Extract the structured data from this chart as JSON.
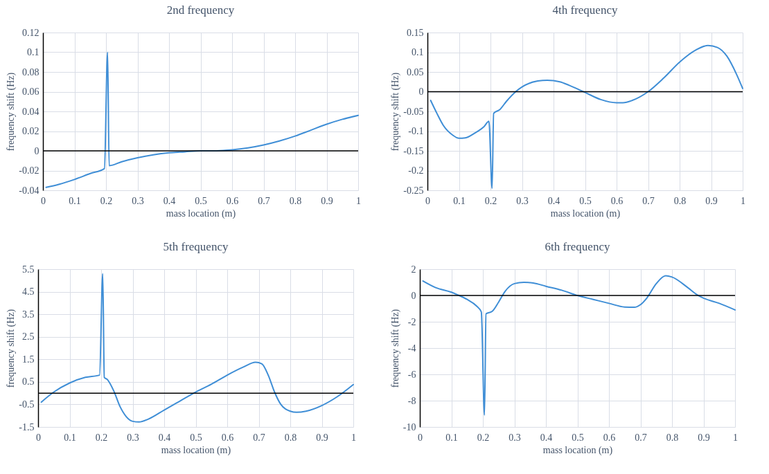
{
  "chart_data": [
    {
      "type": "line",
      "title": "2nd frequency",
      "xlabel": "mass location (m)",
      "ylabel": "frequency shift (Hz)",
      "xlim": [
        0,
        1
      ],
      "xticks": [
        0,
        0.1,
        0.2,
        0.3,
        0.4,
        0.5,
        0.6,
        0.7,
        0.8,
        0.9,
        1
      ],
      "ylim": [
        -0.04,
        0.12
      ],
      "yticks": [
        -0.04,
        -0.02,
        0,
        0.02,
        0.04,
        0.06,
        0.08,
        0.1,
        0.12
      ],
      "grid": true,
      "legend": false,
      "series": [
        {
          "color": "#3f8ed6",
          "x": [
            0.01,
            0.05,
            0.1,
            0.15,
            0.195,
            0.205,
            0.21,
            0.25,
            0.3,
            0.35,
            0.4,
            0.45,
            0.5,
            0.55,
            0.6,
            0.65,
            0.7,
            0.75,
            0.8,
            0.85,
            0.9,
            0.95,
            1
          ],
          "values": [
            -0.037,
            -0.034,
            -0.029,
            -0.023,
            -0.018,
            0.1,
            -0.015,
            -0.011,
            -0.007,
            -0.004,
            -0.002,
            -0.001,
            0,
            0,
            0.001,
            0.003,
            0.006,
            0.01,
            0.015,
            0.021,
            0.027,
            0.032,
            0.036
          ]
        }
      ],
      "ref_lines": [
        {
          "axis": "y",
          "value": 0,
          "color": "#000000"
        }
      ]
    },
    {
      "type": "line",
      "title": "4th frequency",
      "xlabel": "mass location (m)",
      "ylabel": "frequency shift (Hz)",
      "xlim": [
        0,
        1
      ],
      "xticks": [
        0,
        0.1,
        0.2,
        0.3,
        0.4,
        0.5,
        0.6,
        0.7,
        0.8,
        0.9,
        1
      ],
      "ylim": [
        -0.25,
        0.15
      ],
      "yticks": [
        -0.25,
        -0.2,
        -0.15,
        -0.1,
        -0.05,
        0,
        0.05,
        0.1,
        0.15
      ],
      "grid": true,
      "legend": false,
      "series": [
        {
          "color": "#3f8ed6",
          "x": [
            0.01,
            0.03,
            0.05,
            0.08,
            0.1,
            0.12,
            0.15,
            0.18,
            0.195,
            0.205,
            0.21,
            0.23,
            0.25,
            0.28,
            0.3,
            0.35,
            0.38,
            0.42,
            0.45,
            0.5,
            0.55,
            0.6,
            0.62,
            0.65,
            0.7,
            0.75,
            0.8,
            0.85,
            0.89,
            0.92,
            0.95,
            0.98,
            1
          ],
          "values": [
            -0.022,
            -0.055,
            -0.085,
            -0.11,
            -0.118,
            -0.117,
            -0.105,
            -0.088,
            -0.075,
            -0.245,
            -0.055,
            -0.045,
            -0.025,
            0,
            0.012,
            0.027,
            0.029,
            0.025,
            0.016,
            -0.002,
            -0.02,
            -0.028,
            -0.028,
            -0.022,
            0,
            0.035,
            0.075,
            0.105,
            0.117,
            0.112,
            0.09,
            0.045,
            0.008
          ]
        }
      ],
      "ref_lines": [
        {
          "axis": "y",
          "value": 0,
          "color": "#000000"
        }
      ]
    },
    {
      "type": "line",
      "title": "5th frequency",
      "xlabel": "mass location (m)",
      "ylabel": "frequency shift (Hz)",
      "xlim": [
        0,
        1
      ],
      "xticks": [
        0,
        0.1,
        0.2,
        0.3,
        0.4,
        0.5,
        0.6,
        0.7,
        0.8,
        0.9,
        1
      ],
      "ylim": [
        -1.5,
        5.5
      ],
      "yticks": [
        -1.5,
        -0.5,
        0.5,
        1.5,
        2.5,
        3.5,
        4.5,
        5.5
      ],
      "grid": true,
      "legend": false,
      "series": [
        {
          "color": "#3f8ed6",
          "x": [
            0.01,
            0.05,
            0.1,
            0.15,
            0.195,
            0.205,
            0.21,
            0.22,
            0.24,
            0.26,
            0.28,
            0.3,
            0.32,
            0.35,
            0.4,
            0.45,
            0.5,
            0.55,
            0.6,
            0.65,
            0.69,
            0.71,
            0.73,
            0.75,
            0.77,
            0.8,
            0.82,
            0.85,
            0.9,
            0.95,
            1
          ],
          "values": [
            -0.4,
            0.05,
            0.45,
            0.7,
            0.8,
            5.3,
            0.7,
            0.6,
            0.1,
            -0.6,
            -1.05,
            -1.25,
            -1.28,
            -1.15,
            -0.75,
            -0.35,
            0.05,
            0.4,
            0.8,
            1.15,
            1.37,
            1.3,
            0.8,
            0.05,
            -0.5,
            -0.8,
            -0.85,
            -0.8,
            -0.55,
            -0.15,
            0.38
          ]
        }
      ],
      "ref_lines": [
        {
          "axis": "y",
          "value": 0,
          "color": "#000000"
        }
      ]
    },
    {
      "type": "line",
      "title": "6th frequency",
      "xlabel": "mass location (m)",
      "ylabel": "frequency shift (Hz)",
      "xlim": [
        0,
        1
      ],
      "xticks": [
        0,
        0.1,
        0.2,
        0.3,
        0.4,
        0.5,
        0.6,
        0.7,
        0.8,
        0.9,
        1
      ],
      "ylim": [
        -10,
        2
      ],
      "yticks": [
        -10,
        -8,
        -6,
        -4,
        -2,
        0,
        2
      ],
      "grid": true,
      "legend": false,
      "series": [
        {
          "color": "#3f8ed6",
          "x": [
            0.01,
            0.05,
            0.1,
            0.12,
            0.15,
            0.18,
            0.195,
            0.205,
            0.21,
            0.23,
            0.25,
            0.27,
            0.3,
            0.33,
            0.36,
            0.4,
            0.45,
            0.5,
            0.55,
            0.6,
            0.65,
            0.68,
            0.7,
            0.72,
            0.75,
            0.78,
            0.8,
            0.85,
            0.88,
            0.9,
            0.95,
            1
          ],
          "values": [
            1.1,
            0.6,
            0.25,
            0.05,
            -0.3,
            -0.8,
            -1.25,
            -9.1,
            -1.4,
            -1.2,
            -0.5,
            0.3,
            0.9,
            1.0,
            0.95,
            0.7,
            0.4,
            0,
            -0.3,
            -0.6,
            -0.88,
            -0.9,
            -0.7,
            -0.2,
            0.9,
            1.5,
            1.4,
            0.6,
            0.05,
            -0.2,
            -0.6,
            -1.1
          ]
        }
      ],
      "ref_lines": [
        {
          "axis": "y",
          "value": 0,
          "color": "#000000"
        }
      ]
    }
  ]
}
